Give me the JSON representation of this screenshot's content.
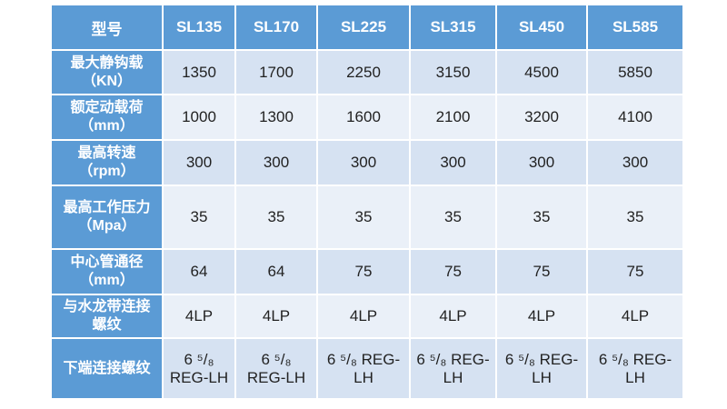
{
  "table": {
    "header": [
      "型号",
      "SL135",
      "SL170",
      "SL225",
      "SL315",
      "SL450",
      "SL585"
    ],
    "rows": [
      {
        "label": [
          "最大静钩载",
          "（KN）"
        ],
        "cells": [
          1350,
          1700,
          2250,
          3150,
          4500,
          5850
        ]
      },
      {
        "label": [
          "额定动载荷",
          "（mm）"
        ],
        "cells": [
          1000,
          1300,
          1600,
          2100,
          3200,
          4100
        ]
      },
      {
        "label": [
          "最高转速",
          "（rpm）"
        ],
        "cells": [
          300,
          300,
          300,
          300,
          300,
          300
        ]
      },
      {
        "label": [
          "最高工作压力",
          "（Mpa）"
        ],
        "cells": [
          35,
          35,
          35,
          35,
          35,
          35
        ]
      },
      {
        "label": [
          "中心管通径",
          "（mm）"
        ],
        "cells": [
          64,
          64,
          75,
          75,
          75,
          75
        ]
      },
      {
        "label": [
          "与水龙带连接",
          "螺纹"
        ],
        "cells": [
          "4LP",
          "4LP",
          "4LP",
          "4LP",
          "4LP",
          "4LP"
        ]
      },
      {
        "label": [
          "下端连接螺纹"
        ],
        "cells": [
          "6 ⁵/₈ REG-LH",
          "6 ⁵/₈ REG-LH",
          "6 ⁵/₈ REG-LH",
          "6 ⁵/₈ REG-LH",
          "6 ⁵/₈ REG-LH",
          "6 ⁵/₈ REG-LH"
        ]
      }
    ]
  }
}
